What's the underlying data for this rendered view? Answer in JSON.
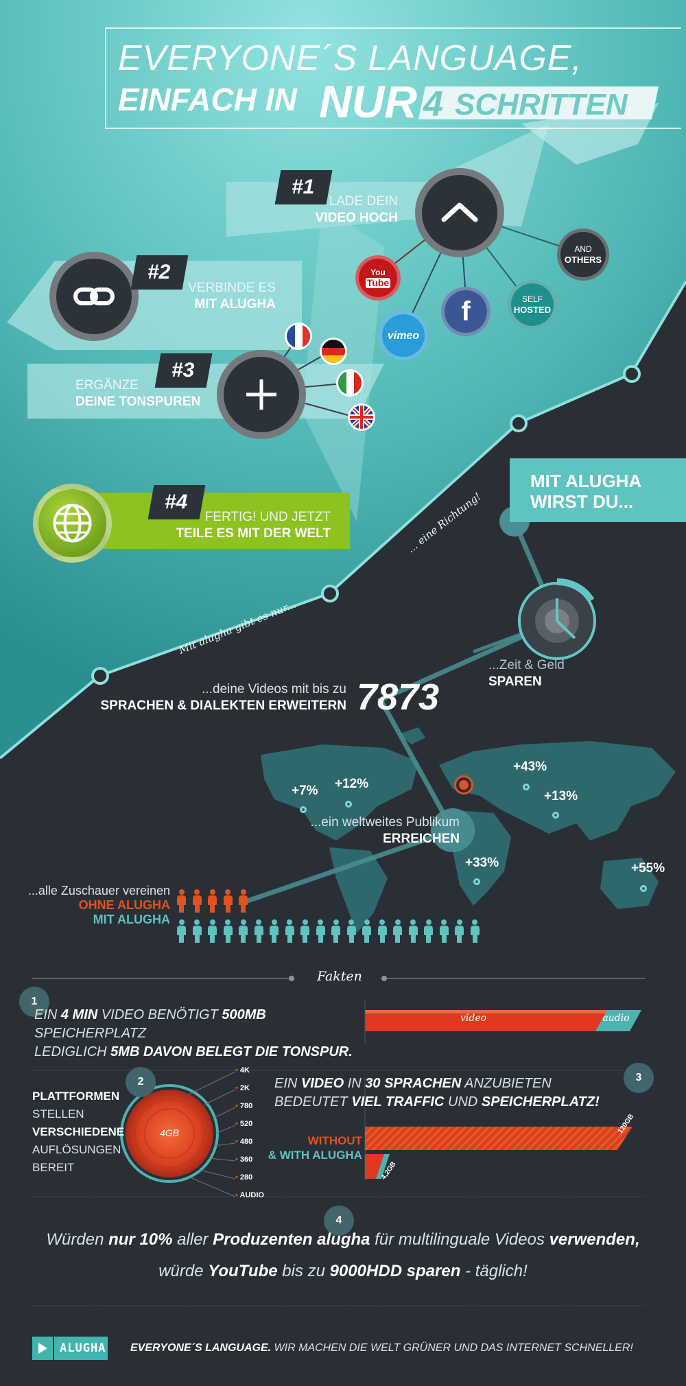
{
  "title": {
    "line1": "EVERYONE´S LANGUAGE,",
    "line2_prefix": "EINFACH IN",
    "line2_nur": "NUR",
    "line2_num": "4",
    "line2_suffix": "SCHRITTEN"
  },
  "steps": [
    {
      "num": "#1",
      "line1": "LADE DEIN",
      "line2": "VIDEO HOCH",
      "icon": "upload-chevron-icon"
    },
    {
      "num": "#2",
      "line1": "VERBINDE ES",
      "line2": "MIT ALUGHA",
      "icon": "link-icon"
    },
    {
      "num": "#3",
      "line1": "ERGÄNZE",
      "line2": "DEINE TONSPUREN",
      "icon": "plus-icon"
    },
    {
      "num": "#4",
      "line1": "FERTIG! UND JETZT",
      "line2": "TEILE ES MIT DER WELT",
      "icon": "globe-icon"
    }
  ],
  "platforms": {
    "youtube_top": "You",
    "youtube_bottom": "Tube",
    "vimeo": "vimeo",
    "facebook": "f",
    "self_top": "SELF",
    "self_bottom": "HOSTED",
    "others_top": "AND",
    "others_bottom": "OTHERS"
  },
  "flags": [
    "france-flag",
    "germany-flag",
    "italy-flag",
    "uk-flag"
  ],
  "colors": {
    "teal": "#5fc3c0",
    "dark": "#2a2f36",
    "green": "#8dc21f",
    "orange": "#e0531f",
    "red": "#e8433a"
  },
  "result": {
    "heading_line1": "MIT ALUGHA",
    "heading_line2": "WIRST DU...",
    "script_nur": "Mit alugha gibt es nur...",
    "script_richtung": "... eine Richtung!",
    "save_light": "...Zeit & Geld",
    "save_bold": "SPAREN",
    "languages_light": "...deine Videos mit bis zu",
    "languages_bold": "SPRACHEN & DIALEKTEN ERWEITERN",
    "languages_count": "7873",
    "audience_light": "...ein weltweites Publikum",
    "audience_bold": "ERREICHEN",
    "percentages": [
      "+7%",
      "+12%",
      "+43%",
      "+13%",
      "+33%",
      "+55%"
    ],
    "viewers_light": "...alle Zuschauer vereinen",
    "without": "OHNE ALUGHA",
    "with": "MIT ALUGHA",
    "without_count": 5,
    "with_count": 20
  },
  "facts": {
    "heading": "Fakten",
    "f1_num": "1",
    "f1": {
      "a": "EIN ",
      "b": "4 MIN",
      "c": " VIDEO BENÖTIGT ",
      "d": "500MB",
      "e": " SPEICHERPLATZ",
      "g": "LEDIGLICH ",
      "h": "5MB DAVON BELEGT DIE TONSPUR."
    },
    "f1_bar_video": "video",
    "f1_bar_audio": "audio",
    "f2_num": "2",
    "f2_text": {
      "a": "PLATTFORMEN",
      "b": "STELLEN",
      "c": "VERSCHIEDENE",
      "d": "AUFLÖSUNGEN",
      "e": "BEREIT"
    },
    "f2_center": "4GB",
    "resolutions": [
      "4K",
      "2K",
      "780",
      "520",
      "480",
      "360",
      "280",
      "AUDIO"
    ],
    "f3_num": "3",
    "f3": {
      "a": "EIN ",
      "b": "VIDEO",
      "c": " IN ",
      "d": "30 SPRACHEN",
      "e": " ANZUBIETEN",
      "g": "BEDEUTET ",
      "h": "VIEL TRAFFIC",
      "i": " UND ",
      "j": "SPEICHERPLATZ!"
    },
    "f3_without": "WITHOUT",
    "f3_with": "& WITH ALUGHA",
    "f3_without_value": "120GB",
    "f3_with_value": "4,2GB",
    "f4_num": "4",
    "f4": {
      "a": "Würden ",
      "b": "nur 10%",
      "c": " aller ",
      "d": "Produzenten alugha",
      "e": " für multilinguale Videos ",
      "f": "verwenden,",
      "g": "würde ",
      "h": "YouTube",
      "i": " bis zu ",
      "j": "9000HDD sparen",
      "k": " - täglich!"
    }
  },
  "footer": {
    "brand": "ALUGHA",
    "tagline_bold": "EVERYONE´S LANGUAGE.",
    "tagline_rest": " WIR MACHEN DIE WELT GRÜNER UND DAS INTERNET SCHNELLER!"
  }
}
